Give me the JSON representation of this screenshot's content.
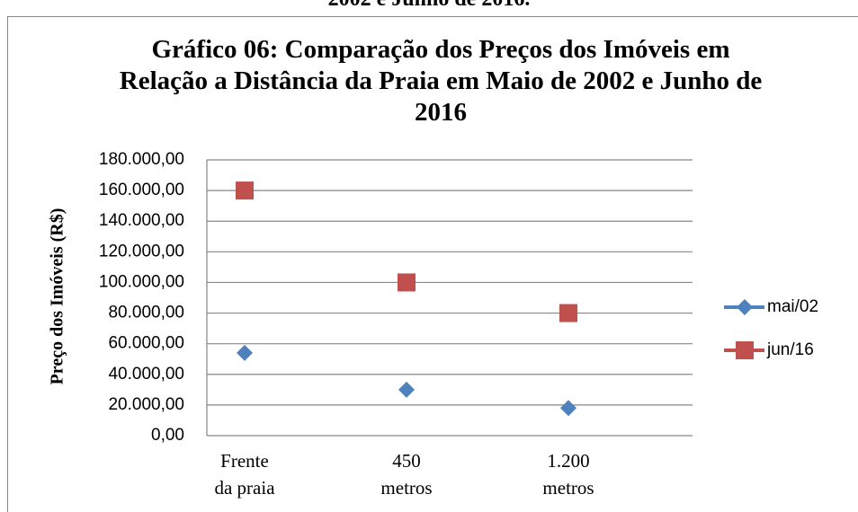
{
  "caption": "2002 e Junho de 2016.",
  "chart_data": {
    "type": "line_markers",
    "title": "Gráfico 06: Comparação dos Preços dos Imóveis em Relação a Distância da Praia em Maio de 2002 e Junho de 2016",
    "y_label": "Preço dos Imóveis (R$)",
    "categories": [
      "Frente da praia",
      "450 metros",
      "1.200 metros"
    ],
    "series": [
      {
        "name": "mai/02",
        "color": "#4f81bd",
        "marker": "diamond",
        "values": [
          54000,
          30000,
          18000
        ]
      },
      {
        "name": "jun/16",
        "color": "#c0504d",
        "marker": "square",
        "values": [
          160000,
          100000,
          80000
        ]
      }
    ],
    "ylim": [
      0,
      180000
    ],
    "yticks": [
      {
        "value": 0,
        "label": "0,00"
      },
      {
        "value": 20000,
        "label": "20.000,00"
      },
      {
        "value": 40000,
        "label": "40.000,00"
      },
      {
        "value": 60000,
        "label": "60.000,00"
      },
      {
        "value": 80000,
        "label": "80.000,00"
      },
      {
        "value": 100000,
        "label": "100.000,00"
      },
      {
        "value": 120000,
        "label": "120.000,00"
      },
      {
        "value": 140000,
        "label": "140.000,00"
      },
      {
        "value": 160000,
        "label": "160.000,00"
      },
      {
        "value": 180000,
        "label": "180.000,00"
      }
    ],
    "grid": true,
    "legend": "right"
  }
}
